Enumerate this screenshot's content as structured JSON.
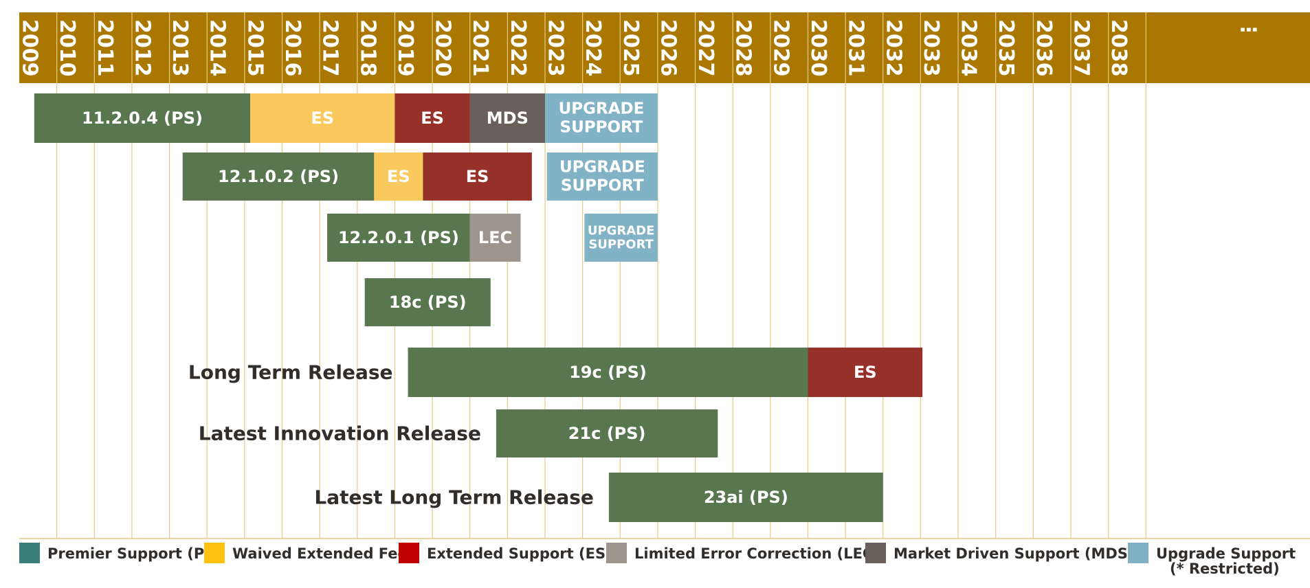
{
  "chart_data": {
    "type": "gantt",
    "title": "",
    "x_axis": {
      "ticks": [
        "2009",
        "2010",
        "2011",
        "2012",
        "2013",
        "2014",
        "2015",
        "2016",
        "2017",
        "2018",
        "2019",
        "2020",
        "2021",
        "2022",
        "2023",
        "2024",
        "2025",
        "2026",
        "2027",
        "2028",
        "2029",
        "2030",
        "2031",
        "2032",
        "2033",
        "2034",
        "2035",
        "2036",
        "2037",
        "2038",
        "⋮"
      ],
      "range": [
        2009,
        2039
      ]
    },
    "bars": [
      {
        "row": 0,
        "label": "11.2.0.4 (PS)",
        "type": "PS",
        "start": 2009.4,
        "end": 2015.15
      },
      {
        "row": 0,
        "label": "ES",
        "type": "WEF",
        "start": 2015.15,
        "end": 2019.0
      },
      {
        "row": 0,
        "label": "ES",
        "type": "ES",
        "start": 2019.0,
        "end": 2021.0
      },
      {
        "row": 0,
        "label": "MDS",
        "type": "MDS",
        "start": 2021.0,
        "end": 2023.0
      },
      {
        "row": 0,
        "label": "UPGRADE SUPPORT",
        "type": "US",
        "start": 2023.0,
        "end": 2026.0
      },
      {
        "row": 1,
        "label": "12.1.0.2 (PS)",
        "type": "PS",
        "start": 2013.35,
        "end": 2018.45
      },
      {
        "row": 1,
        "label": "ES",
        "type": "WEF",
        "start": 2018.45,
        "end": 2019.75
      },
      {
        "row": 1,
        "label": "ES",
        "type": "ES",
        "start": 2019.75,
        "end": 2022.65
      },
      {
        "row": 1,
        "label": "UPGRADE SUPPORT",
        "type": "US",
        "start": 2023.05,
        "end": 2026.0
      },
      {
        "row": 2,
        "label": "12.2.0.1 (PS)",
        "type": "PS",
        "start": 2017.2,
        "end": 2021.0
      },
      {
        "row": 2,
        "label": "LEC",
        "type": "LEC",
        "start": 2021.0,
        "end": 2022.35
      },
      {
        "row": 2,
        "label": "UPGRADE SUPPORT",
        "type": "US",
        "start": 2024.05,
        "end": 2026.0
      },
      {
        "row": 3,
        "label": "18c (PS)",
        "type": "PS",
        "start": 2018.2,
        "end": 2021.55
      },
      {
        "row": 4,
        "label": "19c (PS)",
        "type": "PS",
        "start": 2019.35,
        "end": 2030.0
      },
      {
        "row": 4,
        "label": "ES",
        "type": "ES",
        "start": 2030.0,
        "end": 2033.05
      },
      {
        "row": 5,
        "label": "21c (PS)",
        "type": "PS",
        "start": 2021.7,
        "end": 2027.6
      },
      {
        "row": 6,
        "label": "23ai (PS)",
        "type": "PS",
        "start": 2024.7,
        "end": 2032.0
      }
    ],
    "row_labels": [
      {
        "row": 4,
        "text": "Long Term Release"
      },
      {
        "row": 5,
        "text": "Latest Innovation Release"
      },
      {
        "row": 6,
        "text": "Latest Long Term Release"
      }
    ],
    "legend": [
      {
        "label": "Premier Support (PS)",
        "color": "#3b7f7a"
      },
      {
        "label": "Waived Extended Fee",
        "color": "#ffc20e"
      },
      {
        "label": "Extended Support (ES)",
        "color": "#c00000"
      },
      {
        "label": "Limited Error Correction (LEC)",
        "color": "#9e958c"
      },
      {
        "label": "Market Driven Support (MDS)",
        "color": "#6b5f59"
      },
      {
        "label": "Upgrade Support",
        "color": "#7fb0c4",
        "note": "(* Restricted)"
      }
    ],
    "bar_colors": {
      "PS": "#58774f",
      "WEF": "#fac95e",
      "ES": "#953128",
      "MDS": "#695f5b",
      "LEC": "#9e958c",
      "US": "#81b2c6"
    },
    "header_color": "#aa7800",
    "gridline_color": "#e6c989"
  }
}
